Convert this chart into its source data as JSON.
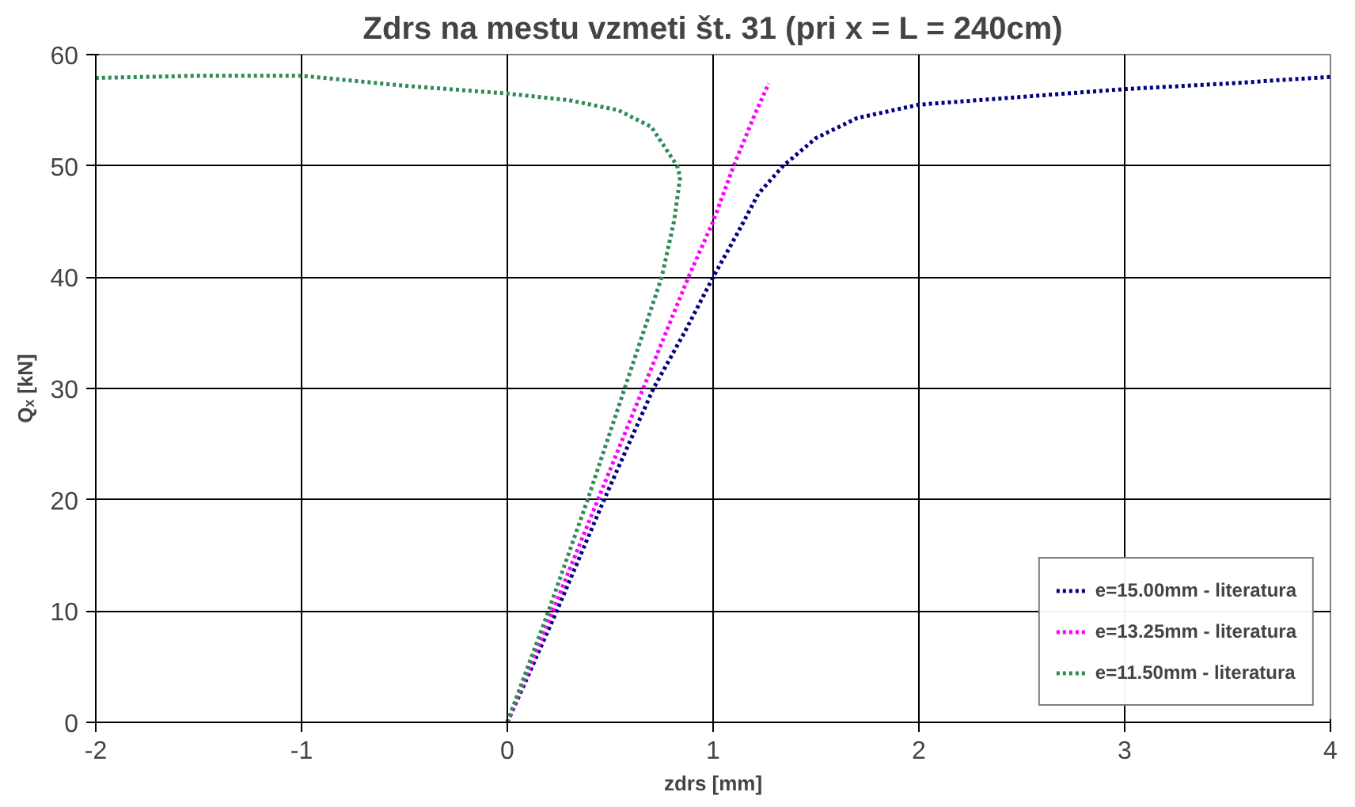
{
  "chart_data": {
    "type": "line",
    "title": "Zdrs na mestu vzmeti št. 31 (pri x = L = 240cm)",
    "xlabel": "zdrs [mm]",
    "ylabel": "Qₓ [kN]",
    "xlim": [
      -2,
      4
    ],
    "xticks": [
      -2,
      -1,
      0,
      1,
      2,
      3,
      4
    ],
    "ylim": [
      0,
      60
    ],
    "yticks": [
      0,
      10,
      20,
      30,
      40,
      50,
      60
    ],
    "grid": true,
    "legend": "bottom right",
    "line_style": "dotted",
    "marker": "none",
    "series": [
      {
        "name": "e=15.00mm - literatura",
        "color": "#000080",
        "x": [
          0,
          0.24,
          0.47,
          0.71,
          0.86,
          1.0,
          1.12,
          1.22,
          1.34,
          1.5,
          1.7,
          2.0,
          2.5,
          3.0,
          3.5,
          4.0
        ],
        "values": [
          0,
          10,
          20,
          30,
          35,
          40,
          44,
          47.5,
          50,
          52.5,
          54.3,
          55.5,
          56.2,
          56.9,
          57.4,
          58
        ]
      },
      {
        "name": "e=13.25mm - literatura",
        "color": "#ff00ff",
        "x": [
          0,
          0.22,
          0.44,
          0.66,
          0.88,
          1.0,
          1.1,
          1.2,
          1.27
        ],
        "values": [
          0,
          10,
          20,
          30,
          40,
          45,
          50,
          54.5,
          57.4
        ]
      },
      {
        "name": "e=11.50mm - literatura",
        "color": "#2e8b57",
        "x": [
          0,
          0.2,
          0.39,
          0.57,
          0.75,
          0.81,
          0.84,
          0.825,
          0.7,
          0.54,
          0.3,
          0,
          -0.5,
          -1,
          -1.5,
          -2
        ],
        "values": [
          0,
          10,
          20,
          30,
          40,
          45,
          49,
          50,
          53.5,
          55,
          55.9,
          56.5,
          57.2,
          58.1,
          58.1,
          57.9
        ]
      }
    ]
  }
}
